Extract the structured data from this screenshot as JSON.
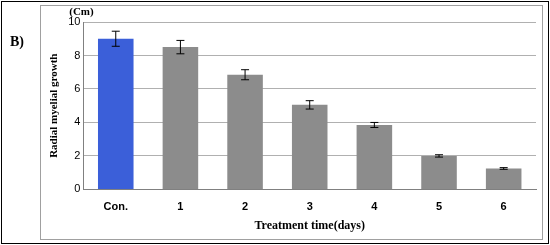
{
  "chart_data": {
    "type": "bar",
    "annotations": [
      "B)",
      "(Cm)"
    ],
    "x_label": "Treatment time(days)",
    "y_label": "Radial myelial growth",
    "categories": [
      "Con.",
      "1",
      "2",
      "3",
      "4",
      "5",
      "6"
    ],
    "values": [
      9.0,
      8.5,
      6.85,
      5.05,
      3.85,
      2.0,
      1.25
    ],
    "errors": [
      0.45,
      0.4,
      0.3,
      0.25,
      0.15,
      0.07,
      0.05
    ],
    "colors": [
      "#3b5fd9",
      "#8c8c8c",
      "#8c8c8c",
      "#8c8c8c",
      "#8c8c8c",
      "#8c8c8c",
      "#8c8c8c"
    ],
    "ylim": [
      0,
      10
    ],
    "yticks": [
      0,
      2,
      4,
      6,
      8,
      10
    ],
    "grid": true
  }
}
